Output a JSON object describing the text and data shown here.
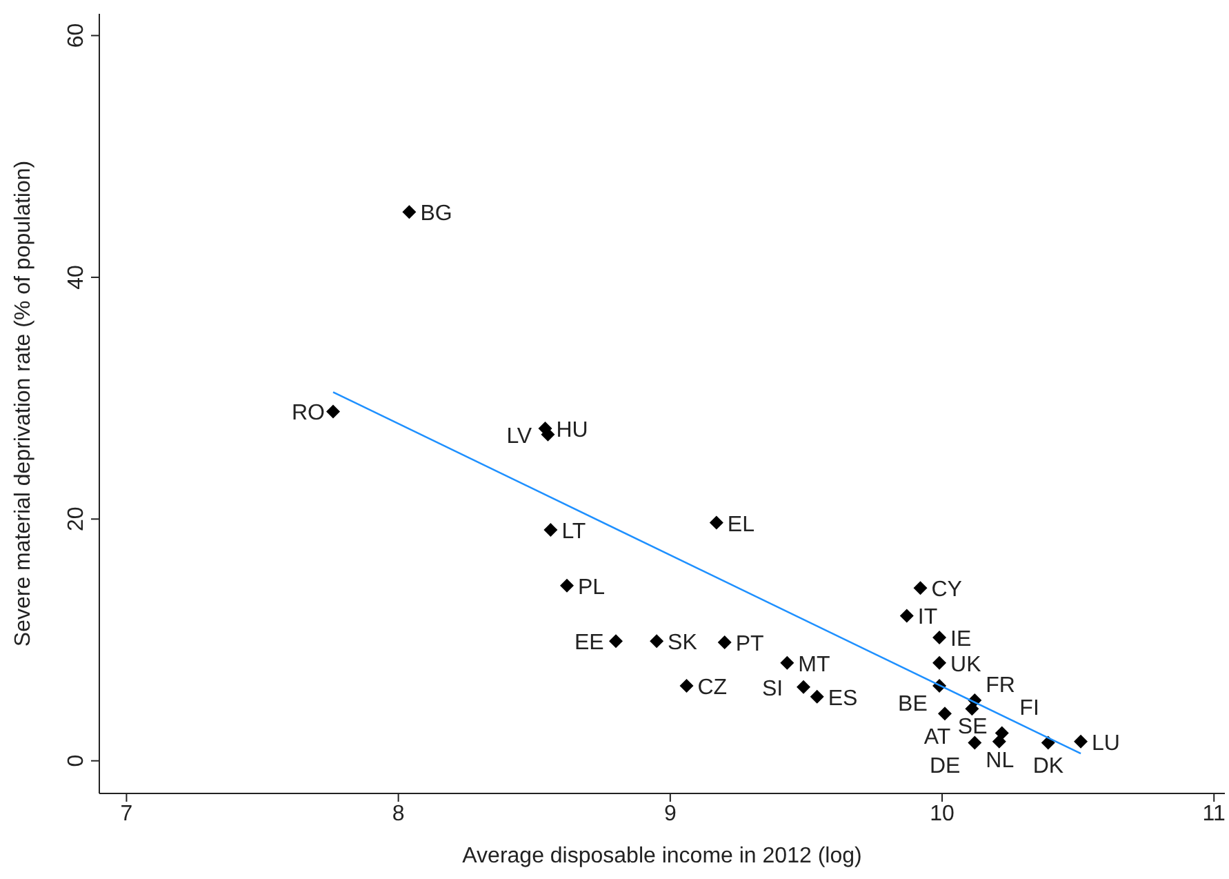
{
  "chart_data": {
    "type": "scatter",
    "xlabel": "Average disposable income in 2012 (log)",
    "ylabel": "Severe material deprivation rate (% of population)",
    "xlim": [
      6.9,
      11.04
    ],
    "ylim": [
      -2.7,
      61.8
    ],
    "xticks": [
      7,
      8,
      9,
      10,
      11
    ],
    "yticks": [
      0,
      20,
      40,
      60
    ],
    "grid": false,
    "legend": false,
    "series": [
      {
        "marker": "diamond",
        "color": "#000000",
        "x": [
          8.04,
          7.76,
          8.54,
          8.55,
          8.56,
          9.17,
          8.62,
          8.8,
          8.95,
          9.2,
          9.43,
          9.06,
          9.49,
          9.54,
          9.92,
          9.87,
          9.99,
          9.99,
          9.99,
          10.12,
          10.11,
          10.01,
          10.22,
          10.12,
          10.21,
          10.39,
          10.51
        ],
        "values": [
          45.4,
          28.9,
          27.5,
          27.0,
          19.1,
          19.7,
          14.5,
          9.9,
          9.9,
          9.8,
          8.1,
          6.2,
          6.1,
          5.3,
          14.3,
          12.0,
          10.2,
          8.1,
          6.2,
          5.0,
          4.3,
          3.9,
          2.3,
          1.5,
          1.6,
          1.5,
          1.6
        ]
      },
      {
        "type": "line",
        "marker": "none",
        "line_style": "solid",
        "color": "#1e90ff",
        "x": [
          7.76,
          10.51
        ],
        "values": [
          30.5,
          0.6
        ]
      }
    ],
    "annotations": [
      {
        "text": "BG",
        "x": 8.04,
        "y": 45.4
      },
      {
        "text": "RO",
        "x": 7.76,
        "y": 28.9
      },
      {
        "text": "HU",
        "x": 8.54,
        "y": 27.5
      },
      {
        "text": "LV",
        "x": 8.55,
        "y": 27.0
      },
      {
        "text": "LT",
        "x": 8.56,
        "y": 19.1
      },
      {
        "text": "EL",
        "x": 9.17,
        "y": 19.7
      },
      {
        "text": "PL",
        "x": 8.62,
        "y": 14.5
      },
      {
        "text": "EE",
        "x": 8.8,
        "y": 9.9
      },
      {
        "text": "SK",
        "x": 8.95,
        "y": 9.9
      },
      {
        "text": "PT",
        "x": 9.2,
        "y": 9.8
      },
      {
        "text": "MT",
        "x": 9.43,
        "y": 8.1
      },
      {
        "text": "CZ",
        "x": 9.06,
        "y": 6.2
      },
      {
        "text": "SI",
        "x": 9.49,
        "y": 6.1
      },
      {
        "text": "ES",
        "x": 9.54,
        "y": 5.3
      },
      {
        "text": "CY",
        "x": 9.92,
        "y": 14.3
      },
      {
        "text": "IT",
        "x": 9.87,
        "y": 12.0
      },
      {
        "text": "IE",
        "x": 9.99,
        "y": 10.2
      },
      {
        "text": "UK",
        "x": 9.99,
        "y": 8.1
      },
      {
        "text": "BE",
        "x": 9.99,
        "y": 6.2
      },
      {
        "text": "FR",
        "x": 10.12,
        "y": 5.0
      },
      {
        "text": "AT",
        "x": 10.11,
        "y": 4.3
      },
      {
        "text": "DE",
        "x": 10.01,
        "y": 3.9
      },
      {
        "text": "FI",
        "x": 10.22,
        "y": 2.3
      },
      {
        "text": "NL",
        "x": 10.12,
        "y": 1.5
      },
      {
        "text": "SE",
        "x": 10.21,
        "y": 1.6
      },
      {
        "text": "DK",
        "x": 10.39,
        "y": 1.5
      },
      {
        "text": "LU",
        "x": 10.51,
        "y": 1.6
      }
    ]
  }
}
